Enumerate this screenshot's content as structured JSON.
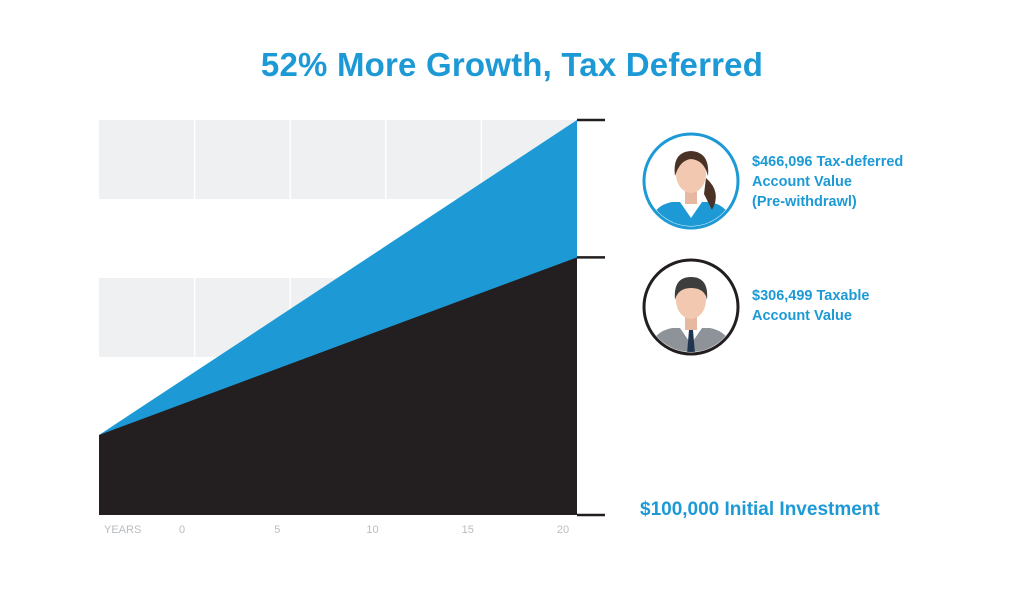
{
  "title": "52% More Growth, Tax Deferred",
  "colors": {
    "accent": "#1d9ad6",
    "taxable": "#231f20",
    "band": "#eef0f1",
    "axis": "#231f20",
    "tick_text": "#b8bcc0"
  },
  "callouts": {
    "tax_deferred": {
      "lines": [
        "$466,096 Tax-deferred",
        "Account Value",
        "(Pre-withdrawl)"
      ],
      "icon": "woman-avatar-icon"
    },
    "taxable": {
      "lines": [
        "$306,499 Taxable",
        "Account Value"
      ],
      "icon": "man-avatar-icon"
    },
    "initial": "$100,000 Initial Investment"
  },
  "chart_data": {
    "type": "area",
    "title": "52% More Growth, Tax Deferred",
    "xlabel": "YEARS",
    "ylabel": "",
    "x": [
      0,
      20
    ],
    "xticks": [
      0,
      5,
      10,
      15,
      20
    ],
    "series": [
      {
        "name": "Tax-deferred Account Value",
        "values": [
          100000,
          466096
        ],
        "color": "#1d9ad6"
      },
      {
        "name": "Taxable Account Value",
        "values": [
          100000,
          306499
        ],
        "color": "#231f20"
      }
    ],
    "ylim": [
      0,
      466096
    ],
    "grid": true,
    "legend": "right"
  }
}
